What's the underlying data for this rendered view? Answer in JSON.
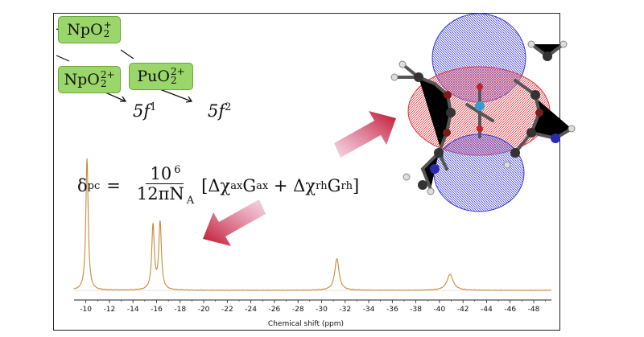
{
  "ions": {
    "npo2_plus": {
      "base": "NpO",
      "sub": "2",
      "sup": "+"
    },
    "npo2_2plus": {
      "base": "NpO",
      "sub": "2",
      "sup": "2+"
    },
    "puo2_2plus": {
      "base": "PuO",
      "sub": "2",
      "sup": "2+"
    }
  },
  "configs": {
    "f1": {
      "base": "5f",
      "sup": "1"
    },
    "f2": {
      "base": "5f",
      "sup": "2"
    }
  },
  "formula": {
    "lhs": "δ",
    "lhs_sub": "pc",
    "equals": "=",
    "num": "10",
    "num_sup": "6",
    "den": "12πN",
    "den_sub": "A",
    "bracket_open": "[Δχ",
    "t1_sub1": "ax",
    "t1_mid": "G",
    "t1_sub2": "ax",
    "plus": " + Δχ",
    "t2_sub1": "rh",
    "t2_mid": "G",
    "t2_sub2": "rh",
    "bracket_close": "]"
  },
  "colors": {
    "spectrum": "#c98a3a",
    "ion_box": "#9bd66a",
    "arrow_dark": "#c0102c",
    "arrow_light": "#f2c4dc",
    "lobe_red": "#e0323c",
    "lobe_blue": "#3a3ad8"
  },
  "chart_data": {
    "type": "line",
    "xlabel": "Chemical shift (ppm)",
    "xlim": [
      -9,
      -49.5
    ],
    "x_reversed": true,
    "ticks": [
      "-10",
      "-12",
      "-14",
      "-16",
      "-18",
      "-20",
      "-22",
      "-24",
      "-26",
      "-28",
      "-30",
      "-32",
      "-34",
      "-36",
      "-38",
      "-40",
      "-42",
      "-44",
      "-46",
      "-48"
    ],
    "peaks": [
      {
        "x": -10.1,
        "height": 1.0,
        "width": 0.12
      },
      {
        "x": -15.7,
        "height": 0.49,
        "width": 0.13
      },
      {
        "x": -16.3,
        "height": 0.51,
        "width": 0.13
      },
      {
        "x": -31.3,
        "height": 0.24,
        "width": 0.22
      },
      {
        "x": -40.9,
        "height": 0.12,
        "width": 0.32
      }
    ]
  }
}
